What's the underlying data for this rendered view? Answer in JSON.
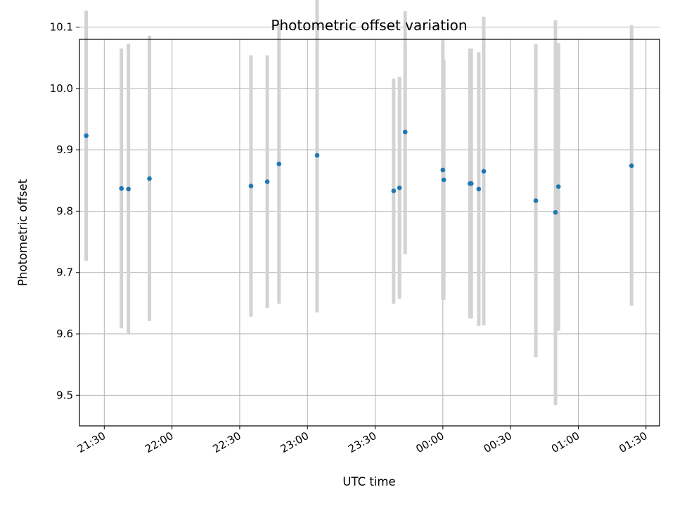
{
  "chart_data": {
    "type": "scatter",
    "title": "Photometric offset variation",
    "xlabel": "UTC time",
    "ylabel": "Photometric offset",
    "xlim": [
      "2000-01-01T21:19:00",
      "2000-01-02T01:36:00"
    ],
    "ylim": [
      9.45,
      10.08
    ],
    "grid": true,
    "x_ticks": [
      {
        "t": "2000-01-01T21:30:00",
        "label": "21:30"
      },
      {
        "t": "2000-01-01T22:00:00",
        "label": "22:00"
      },
      {
        "t": "2000-01-01T22:30:00",
        "label": "22:30"
      },
      {
        "t": "2000-01-01T23:00:00",
        "label": "23:00"
      },
      {
        "t": "2000-01-01T23:30:00",
        "label": "23:30"
      },
      {
        "t": "2000-01-02T00:00:00",
        "label": "00:00"
      },
      {
        "t": "2000-01-02T00:30:00",
        "label": "00:30"
      },
      {
        "t": "2000-01-02T01:00:00",
        "label": "01:00"
      },
      {
        "t": "2000-01-02T01:30:00",
        "label": "01:30"
      }
    ],
    "y_ticks": [
      {
        "v": 9.5,
        "label": "9.5"
      },
      {
        "v": 9.6,
        "label": "9.6"
      },
      {
        "v": 9.7,
        "label": "9.7"
      },
      {
        "v": 9.8,
        "label": "9.8"
      },
      {
        "v": 9.9,
        "label": "9.9"
      },
      {
        "v": 10.0,
        "label": "10.0"
      },
      {
        "v": 10.1,
        "label": "10.1"
      }
    ],
    "marker_color": "#1f77b4",
    "errorbar_color": "#d3d3d3",
    "points": [
      {
        "t": "2000-01-01T21:22:00",
        "y": 9.923,
        "ylo": 9.719,
        "yhi": 10.127
      },
      {
        "t": "2000-01-01T21:37:36",
        "y": 9.837,
        "ylo": 9.609,
        "yhi": 10.065
      },
      {
        "t": "2000-01-01T21:40:42",
        "y": 9.836,
        "ylo": 9.599,
        "yhi": 10.073
      },
      {
        "t": "2000-01-01T21:50:00",
        "y": 9.853,
        "ylo": 9.621,
        "yhi": 10.086
      },
      {
        "t": "2000-01-01T22:35:00",
        "y": 9.841,
        "ylo": 9.628,
        "yhi": 10.054
      },
      {
        "t": "2000-01-01T22:42:12",
        "y": 9.848,
        "ylo": 9.642,
        "yhi": 10.054
      },
      {
        "t": "2000-01-01T22:47:24",
        "y": 9.877,
        "ylo": 9.649,
        "yhi": 10.105
      },
      {
        "t": "2000-01-01T23:04:18",
        "y": 9.891,
        "ylo": 9.635,
        "yhi": 10.147
      },
      {
        "t": "2000-01-01T23:38:12",
        "y": 9.833,
        "ylo": 9.649,
        "yhi": 10.016
      },
      {
        "t": "2000-01-01T23:40:48",
        "y": 9.838,
        "ylo": 9.657,
        "yhi": 10.019
      },
      {
        "t": "2000-01-01T23:43:18",
        "y": 9.929,
        "ylo": 9.73,
        "yhi": 10.126
      },
      {
        "t": "2000-01-02T00:00:00",
        "y": 9.867,
        "ylo": 9.655,
        "yhi": 10.079
      },
      {
        "t": "2000-01-02T00:00:24",
        "y": 9.851,
        "ylo": 9.655,
        "yhi": 10.047
      },
      {
        "t": "2000-01-02T00:12:00",
        "y": 9.845,
        "ylo": 9.625,
        "yhi": 10.065
      },
      {
        "t": "2000-01-02T00:12:36",
        "y": 9.845,
        "ylo": 9.625,
        "yhi": 10.065
      },
      {
        "t": "2000-01-02T00:15:54",
        "y": 9.836,
        "ylo": 9.613,
        "yhi": 10.059
      },
      {
        "t": "2000-01-02T00:18:06",
        "y": 9.865,
        "ylo": 9.614,
        "yhi": 10.117
      },
      {
        "t": "2000-01-02T00:41:12",
        "y": 9.817,
        "ylo": 9.562,
        "yhi": 10.072
      },
      {
        "t": "2000-01-02T00:49:54",
        "y": 9.798,
        "ylo": 9.484,
        "yhi": 10.111
      },
      {
        "t": "2000-01-02T00:51:12",
        "y": 9.84,
        "ylo": 9.605,
        "yhi": 10.074
      },
      {
        "t": "2000-01-02T01:23:36",
        "y": 9.874,
        "ylo": 9.646,
        "yhi": 10.103
      }
    ]
  }
}
